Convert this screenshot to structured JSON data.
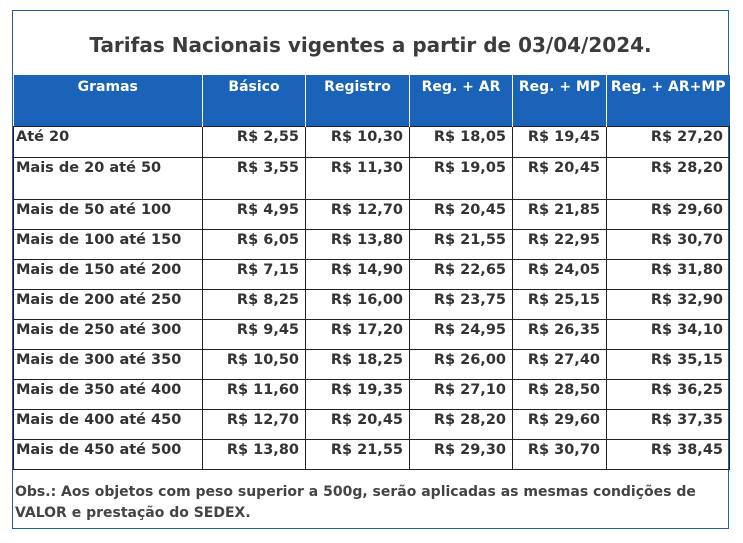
{
  "title": "Tarifas Nacionais vigentes a partir de 03/04/2024.",
  "headers": [
    "Gramas",
    "Básico",
    "Registro",
    "Reg. + AR",
    "Reg. + MP",
    "Reg. + AR+MP"
  ],
  "rows": [
    [
      "Até 20",
      "R$ 2,55",
      "R$ 10,30",
      "R$ 18,05",
      "R$ 19,45",
      "R$ 27,20"
    ],
    [
      "Mais de 20 até 50",
      "R$ 3,55",
      "R$ 11,30",
      "R$ 19,05",
      "R$ 20,45",
      "R$ 28,20"
    ],
    [
      "Mais de 50 até 100",
      "R$ 4,95",
      "R$ 12,70",
      "R$ 20,45",
      "R$ 21,85",
      "R$ 29,60"
    ],
    [
      "Mais de 100 até 150",
      "R$ 6,05",
      "R$ 13,80",
      "R$ 21,55",
      "R$ 22,95",
      "R$ 30,70"
    ],
    [
      "Mais de 150 até 200",
      "R$ 7,15",
      "R$ 14,90",
      "R$ 22,65",
      "R$ 24,05",
      "R$ 31,80"
    ],
    [
      "Mais de 200 até 250",
      "R$ 8,25",
      "R$ 16,00",
      "R$ 23,75",
      "R$ 25,15",
      "R$ 32,90"
    ],
    [
      "Mais de 250 até 300",
      "R$ 9,45",
      "R$ 17,20",
      "R$ 24,95",
      "R$ 26,35",
      "R$ 34,10"
    ],
    [
      "Mais de 300 até 350",
      "R$ 10,50",
      "R$ 18,25",
      "R$ 26,00",
      "R$ 27,40",
      "R$ 35,15"
    ],
    [
      "Mais de 350 até 400",
      "R$ 11,60",
      "R$ 19,35",
      "R$ 27,10",
      "R$ 28,50",
      "R$ 36,25"
    ],
    [
      "Mais de 400 até 450",
      "R$ 12,70",
      "R$ 20,45",
      "R$ 28,20",
      "R$ 29,60",
      "R$ 37,35"
    ],
    [
      "Mais de 450 até 500",
      "R$ 13,80",
      "R$ 21,55",
      "R$ 29,30",
      "R$ 30,70",
      "R$ 38,45"
    ]
  ],
  "note": "Obs.: Aos objetos com peso superior a 500g, serão aplicadas as mesmas condições de VALOR e prestação do SEDEX.",
  "colors": {
    "header_bg": "#1b63b8",
    "border": "#1f5fa8"
  }
}
